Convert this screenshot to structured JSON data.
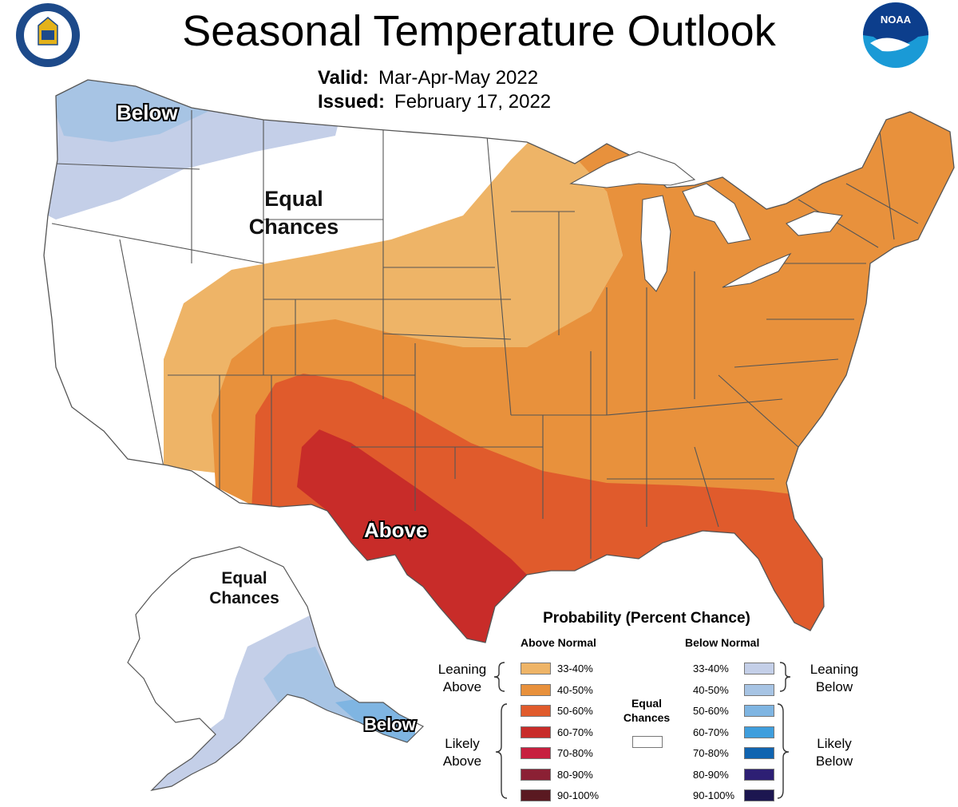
{
  "header": {
    "title": "Seasonal Temperature Outlook",
    "valid_label": "Valid:",
    "valid_value": "Mar-Apr-May 2022",
    "issued_label": "Issued:",
    "issued_value": "February 17, 2022"
  },
  "logos": {
    "doc_seal": "Department of Commerce seal",
    "noaa_text": "NOAA"
  },
  "map_labels": {
    "below_nw": "Below",
    "equal_chances_west_1": "Equal",
    "equal_chances_west_2": "Chances",
    "above_south": "Above",
    "equal_chances_ak_1": "Equal",
    "equal_chances_ak_2": "Chances",
    "below_ak": "Below"
  },
  "legend": {
    "title": "Probability (Percent Chance)",
    "above_header": "Above Normal",
    "below_header": "Below Normal",
    "leaning_above_1": "Leaning",
    "leaning_above_2": "Above",
    "likely_above_1": "Likely",
    "likely_above_2": "Above",
    "leaning_below_1": "Leaning",
    "leaning_below_2": "Below",
    "likely_below_1": "Likely",
    "likely_below_2": "Below",
    "equal_1": "Equal",
    "equal_2": "Chances",
    "above": [
      {
        "range": "33-40%",
        "color": "#eeb467"
      },
      {
        "range": "40-50%",
        "color": "#e8913c"
      },
      {
        "range": "50-60%",
        "color": "#e05b2c"
      },
      {
        "range": "60-70%",
        "color": "#c82c29"
      },
      {
        "range": "70-80%",
        "color": "#c7203f"
      },
      {
        "range": "80-90%",
        "color": "#8b2034"
      },
      {
        "range": "90-100%",
        "color": "#5a1921"
      }
    ],
    "below": [
      {
        "range": "33-40%",
        "color": "#c4cfe8"
      },
      {
        "range": "40-50%",
        "color": "#a7c4e4"
      },
      {
        "range": "50-60%",
        "color": "#7fb5e2"
      },
      {
        "range": "60-70%",
        "color": "#3f9edd"
      },
      {
        "range": "70-80%",
        "color": "#1064b0"
      },
      {
        "range": "80-90%",
        "color": "#2d1f74"
      },
      {
        "range": "90-100%",
        "color": "#1c1650"
      }
    ]
  },
  "colors": {
    "equal_chances": "#ffffff",
    "state_border": "#555555"
  }
}
